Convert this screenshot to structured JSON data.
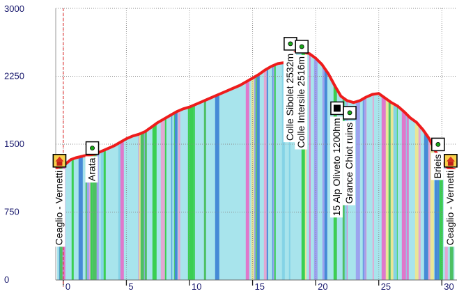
{
  "chart_data": {
    "type": "area",
    "title": "",
    "xlabel": "",
    "ylabel": "",
    "xlim": [
      -0.6,
      31.2
    ],
    "ylim": [
      0,
      3000
    ],
    "x_ticks": [
      0,
      5,
      10,
      15,
      20,
      25,
      30
    ],
    "x_tick_labels": [
      "0",
      "5",
      "10",
      "15",
      "20",
      "25",
      "30"
    ],
    "y_ticks": [
      0,
      750,
      1500,
      2250,
      3000
    ],
    "y_tick_labels": [
      "0",
      "750",
      "1500",
      "2250",
      "3000"
    ],
    "grid": true,
    "profile_color": "#ee1c1c",
    "fill_color": "#a8e4ec",
    "stripe_colors": [
      "#2ecc40",
      "#7fd0e6",
      "#e46cc8",
      "#3b7fd4",
      "#9a9af0",
      "#f0e68c",
      "#e8a0d0",
      "#44bb55"
    ],
    "start_marker_x": 0,
    "series": [
      {
        "x": [
          -0.5,
          0,
          0.6,
          1,
          1.6,
          2,
          2.5,
          3,
          3.5,
          4,
          4.5,
          5,
          5.5,
          6,
          6.5,
          7,
          7.5,
          8,
          8.5,
          9,
          9.5,
          10,
          10.5,
          11,
          11.5,
          12,
          12.5,
          13,
          13.5,
          14,
          14.5,
          15,
          15.5,
          16,
          16.5,
          17,
          17.5,
          18,
          18.5,
          19,
          19.5,
          20,
          20.5,
          21,
          21.5,
          22,
          22.5,
          23,
          23.5,
          24,
          24.5,
          25,
          25.5,
          26,
          26.5,
          27,
          27.5,
          28,
          28.5,
          29,
          29.5,
          30,
          30.5,
          31
        ],
        "y": [
          1240,
          1260,
          1330,
          1350,
          1370,
          1380,
          1390,
          1420,
          1450,
          1480,
          1520,
          1560,
          1590,
          1610,
          1640,
          1690,
          1740,
          1780,
          1820,
          1860,
          1890,
          1910,
          1940,
          1970,
          2000,
          2030,
          2060,
          2090,
          2120,
          2150,
          2190,
          2230,
          2270,
          2320,
          2360,
          2390,
          2400,
          2470,
          2530,
          2520,
          2500,
          2450,
          2380,
          2280,
          2150,
          2030,
          1980,
          1960,
          1980,
          2020,
          2050,
          2060,
          2010,
          1960,
          1920,
          1860,
          1790,
          1740,
          1660,
          1560,
          1420,
          1300,
          1240,
          1220
        ]
      }
    ],
    "waypoints": [
      {
        "label": "Ceaglio - Vernetti",
        "x": -0.3,
        "y": 1240,
        "icon": "house-icon"
      },
      {
        "label": "Arata",
        "x": 2.3,
        "y": 1380,
        "icon": "summit-icon"
      },
      {
        "label": "Colle Sibolet 2532m",
        "x": 18.0,
        "y": 2532,
        "icon": "summit-icon"
      },
      {
        "label": "Colle Intersile 2516m",
        "x": 18.9,
        "y": 2500,
        "icon": "summit-icon"
      },
      {
        "label": "15 Alp Oliveto 1200hm",
        "x": 21.7,
        "y": 1820,
        "icon": "hut-icon"
      },
      {
        "label": "Grance Chiot ruins",
        "x": 22.7,
        "y": 1770,
        "icon": "summit-icon"
      },
      {
        "label": "Brieis",
        "x": 29.7,
        "y": 1420,
        "icon": "summit-icon"
      },
      {
        "label": "Ceaglio - Vernetti",
        "x": 30.7,
        "y": 1240,
        "icon": "house-icon"
      }
    ]
  }
}
